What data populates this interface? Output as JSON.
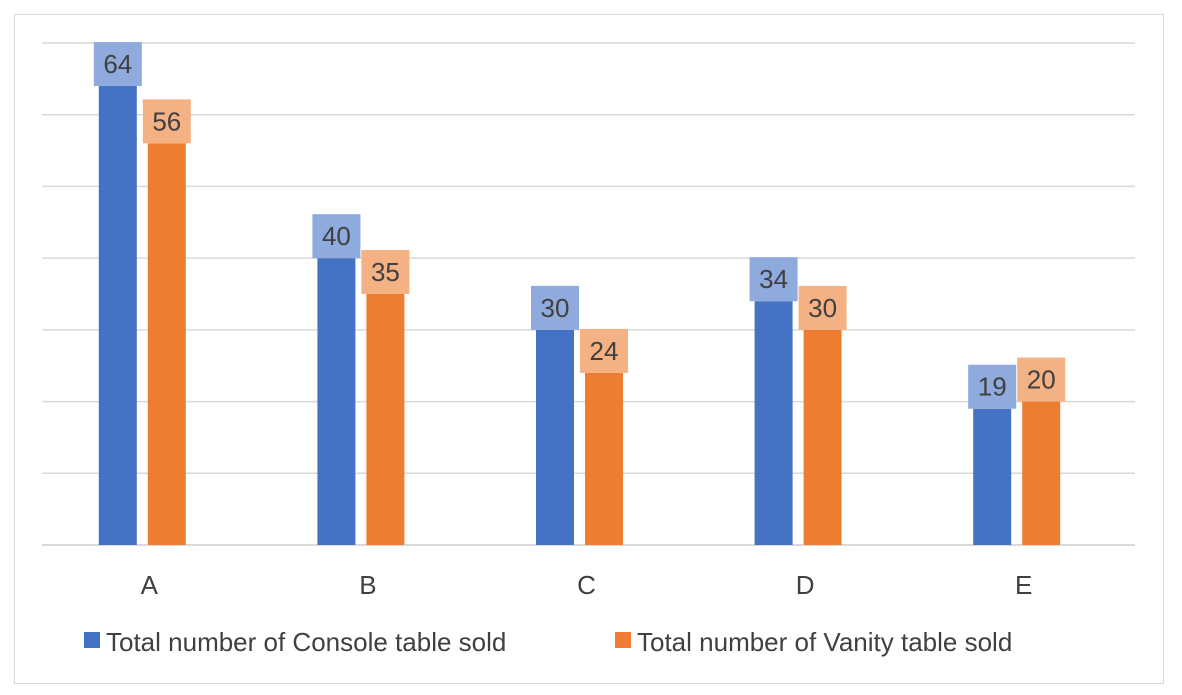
{
  "chart_data": {
    "type": "bar",
    "categories": [
      "A",
      "B",
      "C",
      "D",
      "E"
    ],
    "series": [
      {
        "name": "Total number of Console table sold",
        "values": [
          64,
          40,
          30,
          34,
          19
        ],
        "color": "#4472C4",
        "label_bg": "#8FAADC"
      },
      {
        "name": "Total number of Vanity table sold",
        "values": [
          56,
          35,
          24,
          30,
          20
        ],
        "color": "#ED7D31",
        "label_bg": "#F4B183"
      }
    ],
    "ylim": [
      0,
      70
    ],
    "grid": true,
    "legend_position": "bottom",
    "data_labels": true,
    "colors": {
      "gridline": "#d9d9d9",
      "text": "#404040",
      "frame": "#d9d9d9"
    }
  }
}
